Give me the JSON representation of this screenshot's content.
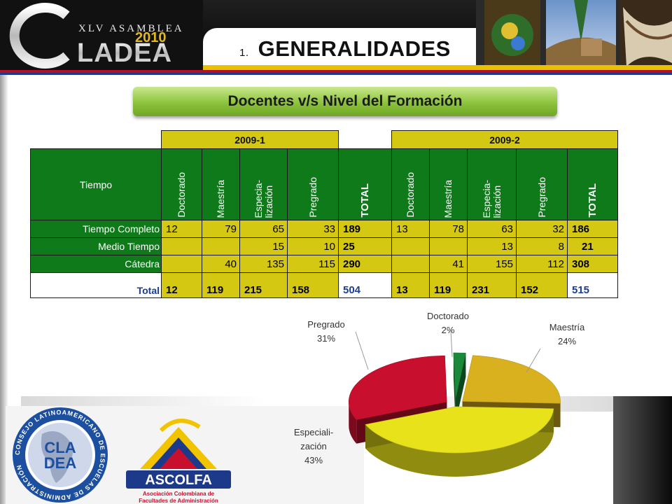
{
  "header": {
    "logo_letters": "CLADEA",
    "logo_event": "XLV ASAMBLEA",
    "logo_year": "2010",
    "title_number": "1.",
    "title_text": "GENERALIDADES"
  },
  "subtitle": "Docentes  v/s  Nivel del Formación",
  "table": {
    "period_1": "2009-1",
    "period_2": "2009-2",
    "row_header": "Tiempo",
    "columns": [
      "Doctorado",
      "Maestría",
      "Especia-\nlización",
      "Pregrado",
      "TOTAL"
    ],
    "rows": [
      {
        "label": "Tiempo Completo",
        "p1": [
          "12",
          "79",
          "65",
          "33",
          "189"
        ],
        "p2": [
          "13",
          "78",
          "63",
          "32",
          "186"
        ]
      },
      {
        "label": "Medio Tiempo",
        "p1": [
          "",
          "",
          "15",
          "10",
          "25"
        ],
        "p2": [
          "",
          "",
          "13",
          "8",
          "21"
        ]
      },
      {
        "label": "Cátedra",
        "p1": [
          "",
          "40",
          "135",
          "115",
          "290"
        ],
        "p2": [
          "",
          "41",
          "155",
          "112",
          "308"
        ]
      },
      {
        "label": "Total",
        "p1": [
          "12",
          "119",
          "215",
          "158",
          "504"
        ],
        "p2": [
          "13",
          "119",
          "231",
          "152",
          "515"
        ]
      }
    ]
  },
  "chart_data": {
    "type": "pie",
    "slices": [
      {
        "label": "Doctorado",
        "percent_label": "2%",
        "value": 2,
        "color": "#1a8a3a"
      },
      {
        "label": "Maestría",
        "percent_label": "24%",
        "value": 24,
        "color": "#d9b01e"
      },
      {
        "label": "Especiali-\nzación",
        "percent_label": "43%",
        "value": 43,
        "color": "#e8e21a"
      },
      {
        "label": "Pregrado",
        "percent_label": "31%",
        "value": 31,
        "color": "#c8102e"
      }
    ],
    "legend": "none",
    "style": "3d-exploded"
  },
  "logos": {
    "cladea_ring": "CONSEJO LATINOAMERICANO DE ESCUELAS DE ADMINISTRACIÓN",
    "cladea_center": "CLA DEA",
    "ascolfa_name": "ASCOLFA",
    "ascolfa_sub1": "Asociación Colombiana de",
    "ascolfa_sub2": "Facultades de Administración"
  },
  "colors": {
    "table_yellow": "#d4c813",
    "table_green": "#0f7a1a",
    "accent_red": "#b0122a",
    "accent_blue": "#1d3a8a"
  }
}
